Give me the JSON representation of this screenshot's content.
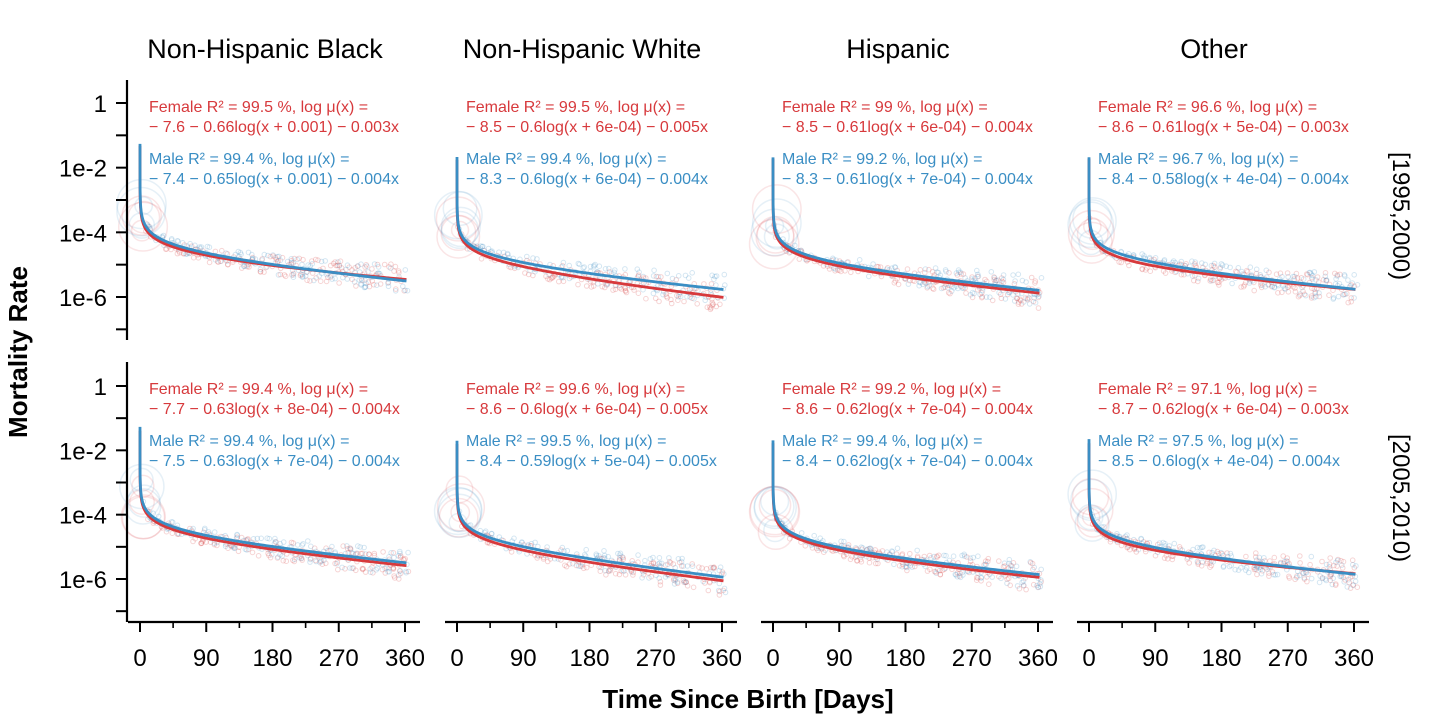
{
  "chart_data": {
    "type": "line",
    "xlabel": "Time Since Birth [Days]",
    "ylabel": "Mortality Rate",
    "x_ticks": [
      "0",
      "90",
      "180",
      "270",
      "360"
    ],
    "x_range": [
      0,
      365
    ],
    "y_scale": "log10",
    "y_ticks": [
      "1",
      "1e-2",
      "1e-4",
      "1e-6"
    ],
    "y_range": [
      1e-07,
      1.5
    ],
    "columns": [
      "Non-Hispanic Black",
      "Non-Hispanic White",
      "Hispanic",
      "Other"
    ],
    "rows": [
      "[1995,2000)",
      "[2005,2010)"
    ],
    "colors": {
      "Female": "#d7393c",
      "Male": "#3a8ec4"
    },
    "panels": [
      {
        "row": "[1995,2000)",
        "column": "Non-Hispanic Black",
        "series": [
          {
            "name": "Female",
            "r2": "99.5",
            "a": -7.6,
            "b": -0.66,
            "c": "0.001",
            "d": -0.003,
            "line1": "Female  R² = 99.5  %,  log  μ(x) =",
            "line2": "− 7.6 − 0.66log(x + 0.001)  − 0.003x"
          },
          {
            "name": "Male",
            "r2": "99.4",
            "a": -7.4,
            "b": -0.65,
            "c": "0.001",
            "d": -0.004,
            "line1": "Male  R² = 99.4  %,  log  μ(x) =",
            "line2": "− 7.4 − 0.65log(x + 0.001)  − 0.004x"
          }
        ]
      },
      {
        "row": "[1995,2000)",
        "column": "Non-Hispanic White",
        "series": [
          {
            "name": "Female",
            "r2": "99.5",
            "a": -8.5,
            "b": -0.6,
            "c": "6e-04",
            "d": -0.005,
            "line1": "Female  R² = 99.5  %,  log  μ(x) =",
            "line2": "− 8.5 − 0.6log(x + 6e-04)  − 0.005x"
          },
          {
            "name": "Male",
            "r2": "99.4",
            "a": -8.3,
            "b": -0.6,
            "c": "6e-04",
            "d": -0.004,
            "line1": "Male  R² = 99.4  %,  log  μ(x) =",
            "line2": "− 8.3 − 0.6log(x + 6e-04)  − 0.004x"
          }
        ]
      },
      {
        "row": "[1995,2000)",
        "column": "Hispanic",
        "series": [
          {
            "name": "Female",
            "r2": "99",
            "a": -8.5,
            "b": -0.61,
            "c": "6e-04",
            "d": -0.004,
            "line1": "Female  R² = 99  %,  log  μ(x) =",
            "line2": "− 8.5 − 0.61log(x + 6e-04)  − 0.004x"
          },
          {
            "name": "Male",
            "r2": "99.2",
            "a": -8.3,
            "b": -0.61,
            "c": "7e-04",
            "d": -0.004,
            "line1": "Male  R² = 99.2  %,  log  μ(x) =",
            "line2": "− 8.3 − 0.61log(x + 7e-04)  − 0.004x"
          }
        ]
      },
      {
        "row": "[1995,2000)",
        "column": "Other",
        "series": [
          {
            "name": "Female",
            "r2": "96.6",
            "a": -8.6,
            "b": -0.61,
            "c": "5e-04",
            "d": -0.003,
            "line1": "Female  R² = 96.6  %,  log  μ(x) =",
            "line2": "− 8.6 − 0.61log(x + 5e-04)  − 0.003x"
          },
          {
            "name": "Male",
            "r2": "96.7",
            "a": -8.4,
            "b": -0.58,
            "c": "4e-04",
            "d": -0.004,
            "line1": "Male  R² = 96.7  %,  log  μ(x) =",
            "line2": "− 8.4 − 0.58log(x + 4e-04)  − 0.004x"
          }
        ]
      },
      {
        "row": "[2005,2010)",
        "column": "Non-Hispanic Black",
        "series": [
          {
            "name": "Female",
            "r2": "99.4",
            "a": -7.7,
            "b": -0.63,
            "c": "8e-04",
            "d": -0.004,
            "line1": "Female  R² = 99.4  %,  log  μ(x) =",
            "line2": "− 7.7 − 0.63log(x + 8e-04)  − 0.004x"
          },
          {
            "name": "Male",
            "r2": "99.4",
            "a": -7.5,
            "b": -0.63,
            "c": "7e-04",
            "d": -0.004,
            "line1": "Male  R² = 99.4  %,  log  μ(x) =",
            "line2": "− 7.5 − 0.63log(x + 7e-04)  − 0.004x"
          }
        ]
      },
      {
        "row": "[2005,2010)",
        "column": "Non-Hispanic White",
        "series": [
          {
            "name": "Female",
            "r2": "99.6",
            "a": -8.6,
            "b": -0.6,
            "c": "6e-04",
            "d": -0.005,
            "line1": "Female  R² = 99.6  %,  log  μ(x) =",
            "line2": "− 8.6 − 0.6log(x + 6e-04)  − 0.005x"
          },
          {
            "name": "Male",
            "r2": "99.5",
            "a": -8.4,
            "b": -0.59,
            "c": "5e-04",
            "d": -0.005,
            "line1": "Male  R² = 99.5  %,  log  μ(x) =",
            "line2": "− 8.4 − 0.59log(x + 5e-04)  − 0.005x"
          }
        ]
      },
      {
        "row": "[2005,2010)",
        "column": "Hispanic",
        "series": [
          {
            "name": "Female",
            "r2": "99.2",
            "a": -8.6,
            "b": -0.62,
            "c": "7e-04",
            "d": -0.004,
            "line1": "Female  R² = 99.2  %,  log  μ(x) =",
            "line2": "− 8.6 − 0.62log(x + 7e-04)  − 0.004x"
          },
          {
            "name": "Male",
            "r2": "99.4",
            "a": -8.4,
            "b": -0.62,
            "c": "7e-04",
            "d": -0.004,
            "line1": "Male  R² = 99.4  %,  log  μ(x) =",
            "line2": "− 8.4 − 0.62log(x + 7e-04)  − 0.004x"
          }
        ]
      },
      {
        "row": "[2005,2010)",
        "column": "Other",
        "series": [
          {
            "name": "Female",
            "r2": "97.1",
            "a": -8.7,
            "b": -0.62,
            "c": "6e-04",
            "d": -0.003,
            "line1": "Female  R² = 97.1  %,  log  μ(x) =",
            "line2": "− 8.7 − 0.62log(x + 6e-04)  − 0.003x"
          },
          {
            "name": "Male",
            "r2": "97.5",
            "a": -8.5,
            "b": -0.6,
            "c": "4e-04",
            "d": -0.004,
            "line1": "Male  R² = 97.5  %,  log  μ(x) =",
            "line2": "− 8.5 − 0.6log(x + 4e-04)  − 0.004x"
          }
        ]
      }
    ]
  }
}
